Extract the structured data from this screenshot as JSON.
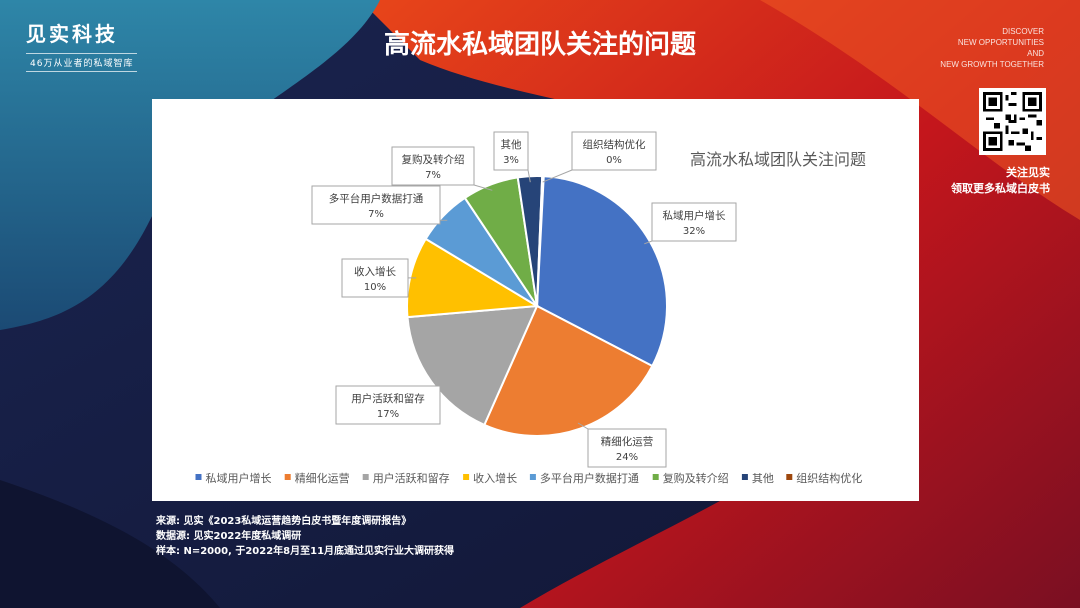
{
  "brand": {
    "name": "见实科技",
    "subtitle": "46万从业者的私域智库"
  },
  "slide_title": "高流水私域团队关注的问题",
  "tagline": [
    "DISCOVER",
    "NEW OPPORTUNITIES",
    "AND",
    "NEW GROWTH TOGETHER"
  ],
  "qr": {
    "caption_line1": "关注见实",
    "caption_line2": "领取更多私域白皮书"
  },
  "sources": [
    "来源: 见实《2023私域运营趋势白皮书暨年度调研报告》",
    "数据源: 见实2022年度私域调研",
    "样本: N=2000, 于2022年8月至11月底通过见实行业大调研获得"
  ],
  "colors": {
    "slices": [
      "#4472C4",
      "#ED7D31",
      "#A5A5A5",
      "#FFC000",
      "#5B9BD5",
      "#70AD47",
      "#264478",
      "#9E480E"
    ]
  },
  "chart_data": {
    "type": "pie",
    "title": "高流水私域团队关注问题",
    "legend_position": "bottom",
    "categories": [
      "私域用户增长",
      "精细化运营",
      "用户活跃和留存",
      "收入增长",
      "多平台用户数据打通",
      "复购及转介绍",
      "其他",
      "组织结构优化"
    ],
    "values": [
      32,
      24,
      17,
      10,
      7,
      7,
      3,
      0
    ],
    "labels": [
      "32%",
      "24%",
      "17%",
      "10%",
      "7%",
      "7%",
      "3%",
      "0%"
    ]
  }
}
